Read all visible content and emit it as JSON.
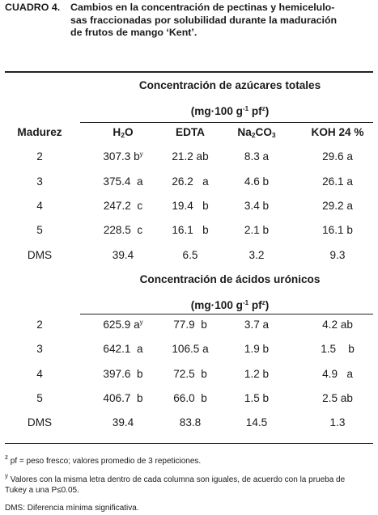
{
  "caption": {
    "label": "CUADRO 4.",
    "lines": [
      "Cambios en la concentración de pectinas y hemicelulo-",
      "sas fraccionadas por solubilidad durante la maduración",
      "de frutos de mango ‘Kent’."
    ]
  },
  "table": {
    "col_header": "Madurez",
    "columns": [
      {
        "main": "H",
        "sub": "2",
        "after": "O"
      },
      {
        "main": "EDTA",
        "sub": "",
        "after": ""
      },
      {
        "main": "Na",
        "sub": "2",
        "after": "CO",
        "sub2": "3"
      },
      {
        "main": "KOH 24 %",
        "sub": "",
        "after": ""
      }
    ],
    "sections": [
      {
        "title": "Concentración de azúcares totales",
        "units": {
          "pre": "(mg·100 g",
          "sup": "-1",
          "mid": " pf",
          "sup2": "z",
          "post": ")"
        },
        "rows": [
          {
            "label": "2",
            "cells": [
              {
                "v": "307.3 b",
                "sup": "y"
              },
              {
                "v": "21.2 ab"
              },
              {
                "v": "8.3 a"
              },
              {
                "v": "29.6 a"
              }
            ]
          },
          {
            "label": "3",
            "cells": [
              {
                "v": "375.4  a"
              },
              {
                "v": "26.2   a"
              },
              {
                "v": "4.6 b"
              },
              {
                "v": "26.1 a"
              }
            ]
          },
          {
            "label": "4",
            "cells": [
              {
                "v": "247.2  c"
              },
              {
                "v": "19.4   b"
              },
              {
                "v": "3.4 b"
              },
              {
                "v": "29.2 a"
              }
            ]
          },
          {
            "label": "5",
            "cells": [
              {
                "v": "228.5  c"
              },
              {
                "v": "16.1   b"
              },
              {
                "v": "2.1 b"
              },
              {
                "v": "16.1 b"
              }
            ]
          }
        ],
        "dms": {
          "label": "DMS",
          "cells": [
            "39.4",
            "6.5",
            "3.2",
            "9.3"
          ]
        }
      },
      {
        "title": "Concentración de ácidos urónicos",
        "units": {
          "pre": "(mg·100 g",
          "sup": "-1",
          "mid": " pf",
          "sup2": "z",
          "post": ")"
        },
        "rows": [
          {
            "label": "2",
            "cells": [
              {
                "v": "625.9 a",
                "sup": "y"
              },
              {
                "v": "77.9  b"
              },
              {
                "v": "3.7 a"
              },
              {
                "v": "4.2 ab"
              }
            ]
          },
          {
            "label": "3",
            "cells": [
              {
                "v": "642.1  a"
              },
              {
                "v": "106.5 a"
              },
              {
                "v": "1.9 b"
              },
              {
                "v": "1.5    b"
              }
            ]
          },
          {
            "label": "4",
            "cells": [
              {
                "v": "397.6  b"
              },
              {
                "v": "72.5  b"
              },
              {
                "v": "1.2 b"
              },
              {
                "v": "4.9   a"
              }
            ]
          },
          {
            "label": "5",
            "cells": [
              {
                "v": "406.7  b"
              },
              {
                "v": "66.0  b"
              },
              {
                "v": "1.5 b"
              },
              {
                "v": "2.5 ab"
              }
            ]
          }
        ],
        "dms": {
          "label": "DMS",
          "cells": [
            "39.4",
            "83.8",
            "14.5",
            "1.3"
          ]
        }
      }
    ]
  },
  "footnotes": [
    {
      "mark": "z",
      "lines": [
        "pf = peso fresco; valores promedio de 3 repeticiones."
      ]
    },
    {
      "mark": "y",
      "lines": [
        "Valores con la misma letra dentro de cada columna son iguales, de acuerdo con la prueba de",
        "Tukey a una P≤0.05."
      ]
    },
    {
      "mark": "",
      "lines": [
        "DMS: Diferencia mínima significativa."
      ]
    }
  ]
}
